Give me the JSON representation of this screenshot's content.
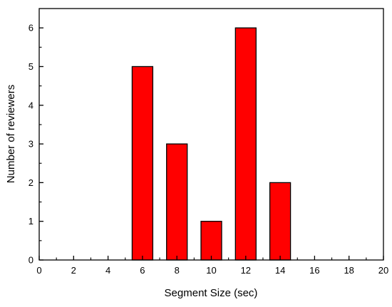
{
  "chart_data": {
    "type": "bar",
    "title": "",
    "xlabel": "Segment Size (sec)",
    "ylabel": "Number of reviewers",
    "xlim": [
      0,
      20
    ],
    "ylim": [
      0,
      6.5
    ],
    "x_ticks": [
      0,
      2,
      4,
      6,
      8,
      10,
      12,
      14,
      16,
      18,
      20
    ],
    "y_ticks": [
      0,
      1,
      2,
      3,
      4,
      5,
      6
    ],
    "grid": false,
    "legend": "none",
    "bar_color": "#ff0000",
    "bar_width": 1.2,
    "series": [
      {
        "x": [
          6,
          8,
          10,
          12,
          14
        ],
        "values": [
          5,
          3,
          1,
          6,
          2
        ]
      }
    ]
  }
}
